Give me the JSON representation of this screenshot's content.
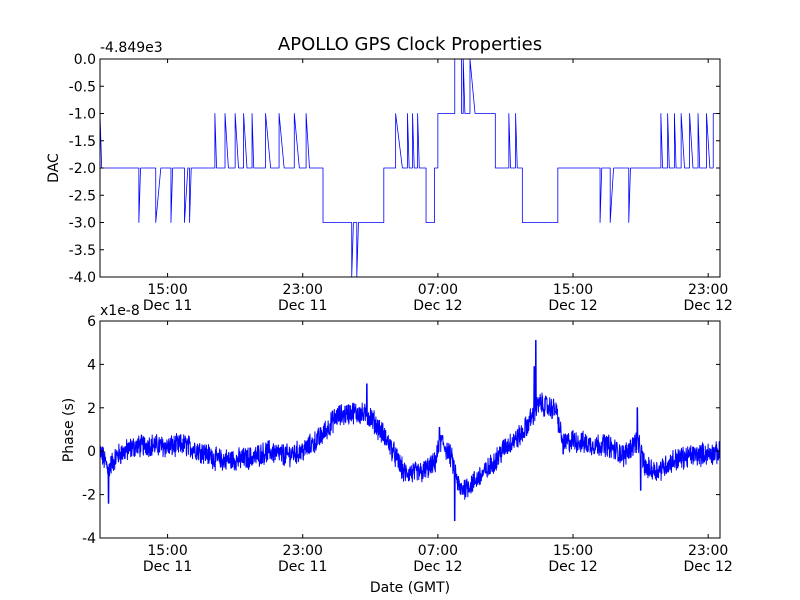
{
  "chart_data": [
    {
      "type": "line",
      "title": "APOLLO GPS Clock Properties",
      "offset_label": "-4.849e3",
      "ylabel": "DAC",
      "xlabel": "",
      "ylim": [
        -4.0,
        0.0
      ],
      "yticks": [
        "0.0",
        "-0.5",
        "-1.0",
        "-1.5",
        "-2.0",
        "-2.5",
        "-3.0",
        "-3.5",
        "-4.0"
      ],
      "ytick_values": [
        0.0,
        -0.5,
        -1.0,
        -1.5,
        -2.0,
        -2.5,
        -3.0,
        -3.5,
        -4.0
      ],
      "xlim_hours": [
        11.0,
        47.7
      ],
      "xticks": [
        {
          "hour": 15,
          "time": "15:00",
          "date": "Dec 11"
        },
        {
          "hour": 23,
          "time": "23:00",
          "date": "Dec 11"
        },
        {
          "hour": 31,
          "time": "07:00",
          "date": "Dec 12"
        },
        {
          "hour": 39,
          "time": "15:00",
          "date": "Dec 12"
        },
        {
          "hour": 47,
          "time": "23:00",
          "date": "Dec 12"
        }
      ],
      "series": [
        {
          "name": "",
          "color": "#0000ff",
          "kind": "step",
          "points": [
            [
              11.0,
              -1.0
            ],
            [
              11.1,
              -2.0
            ],
            [
              13.3,
              -2.0
            ],
            [
              13.3,
              -3.0
            ],
            [
              13.4,
              -2.0
            ],
            [
              14.3,
              -2.0
            ],
            [
              14.3,
              -3.0
            ],
            [
              14.6,
              -2.0
            ],
            [
              15.2,
              -2.0
            ],
            [
              15.2,
              -3.0
            ],
            [
              15.3,
              -2.0
            ],
            [
              16.0,
              -2.0
            ],
            [
              16.0,
              -3.0
            ],
            [
              16.2,
              -2.0
            ],
            [
              16.3,
              -2.0
            ],
            [
              16.3,
              -3.0
            ],
            [
              16.4,
              -2.0
            ],
            [
              17.8,
              -2.0
            ],
            [
              17.8,
              -1.0
            ],
            [
              17.9,
              -2.0
            ],
            [
              18.4,
              -2.0
            ],
            [
              18.4,
              -1.0
            ],
            [
              18.6,
              -2.0
            ],
            [
              19.0,
              -2.0
            ],
            [
              19.0,
              -1.0
            ],
            [
              19.2,
              -2.0
            ],
            [
              19.5,
              -2.0
            ],
            [
              19.5,
              -1.0
            ],
            [
              19.7,
              -2.0
            ],
            [
              20.0,
              -2.0
            ],
            [
              20.0,
              -1.0
            ],
            [
              20.1,
              -2.0
            ],
            [
              20.8,
              -2.0
            ],
            [
              20.8,
              -1.0
            ],
            [
              21.1,
              -2.0
            ],
            [
              21.6,
              -2.0
            ],
            [
              21.6,
              -1.0
            ],
            [
              21.9,
              -2.0
            ],
            [
              22.5,
              -2.0
            ],
            [
              22.5,
              -1.0
            ],
            [
              22.8,
              -2.0
            ],
            [
              23.2,
              -2.0
            ],
            [
              23.2,
              -1.0
            ],
            [
              23.4,
              -2.0
            ],
            [
              24.2,
              -2.0
            ],
            [
              24.2,
              -3.0
            ],
            [
              25.9,
              -3.0
            ],
            [
              25.9,
              -4.0
            ],
            [
              26.0,
              -3.0
            ],
            [
              26.2,
              -3.0
            ],
            [
              26.2,
              -4.0
            ],
            [
              26.3,
              -3.0
            ],
            [
              27.8,
              -3.0
            ],
            [
              27.8,
              -2.0
            ],
            [
              28.5,
              -2.0
            ],
            [
              28.5,
              -1.0
            ],
            [
              28.9,
              -2.0
            ],
            [
              29.2,
              -2.0
            ],
            [
              29.2,
              -1.0
            ],
            [
              29.3,
              -2.0
            ],
            [
              29.5,
              -2.0
            ],
            [
              29.5,
              -1.0
            ],
            [
              29.6,
              -2.0
            ],
            [
              29.8,
              -2.0
            ],
            [
              29.8,
              -1.0
            ],
            [
              29.9,
              -2.0
            ],
            [
              30.3,
              -2.0
            ],
            [
              30.3,
              -3.0
            ],
            [
              30.8,
              -3.0
            ],
            [
              30.8,
              -2.0
            ],
            [
              31.0,
              -2.0
            ],
            [
              31.0,
              -1.0
            ],
            [
              32.0,
              -1.0
            ],
            [
              32.0,
              0.0
            ],
            [
              32.4,
              0.0
            ],
            [
              32.4,
              -1.0
            ],
            [
              32.5,
              -1.0
            ],
            [
              32.5,
              0.0
            ],
            [
              32.6,
              -1.0
            ],
            [
              32.9,
              -1.0
            ],
            [
              32.9,
              0.0
            ],
            [
              33.2,
              -1.0
            ],
            [
              34.4,
              -1.0
            ],
            [
              34.4,
              -2.0
            ],
            [
              35.2,
              -2.0
            ],
            [
              35.2,
              -1.0
            ],
            [
              35.3,
              -2.0
            ],
            [
              35.6,
              -2.0
            ],
            [
              35.6,
              -1.0
            ],
            [
              35.7,
              -2.0
            ],
            [
              36.0,
              -2.0
            ],
            [
              36.0,
              -3.0
            ],
            [
              38.1,
              -3.0
            ],
            [
              38.1,
              -2.0
            ],
            [
              40.6,
              -2.0
            ],
            [
              40.6,
              -3.0
            ],
            [
              40.7,
              -2.0
            ],
            [
              41.2,
              -2.0
            ],
            [
              41.2,
              -3.0
            ],
            [
              41.4,
              -2.0
            ],
            [
              42.3,
              -2.0
            ],
            [
              42.3,
              -3.0
            ],
            [
              42.4,
              -2.0
            ],
            [
              44.2,
              -2.0
            ],
            [
              44.2,
              -1.0
            ],
            [
              44.3,
              -2.0
            ],
            [
              44.6,
              -2.0
            ],
            [
              44.6,
              -1.0
            ],
            [
              44.7,
              -2.0
            ],
            [
              45.0,
              -2.0
            ],
            [
              45.0,
              -1.0
            ],
            [
              45.1,
              -2.0
            ],
            [
              45.4,
              -2.0
            ],
            [
              45.4,
              -1.0
            ],
            [
              45.6,
              -2.0
            ],
            [
              45.9,
              -2.0
            ],
            [
              45.9,
              -1.0
            ],
            [
              46.1,
              -2.0
            ],
            [
              46.4,
              -2.0
            ],
            [
              46.4,
              -1.0
            ],
            [
              46.5,
              -2.0
            ],
            [
              46.9,
              -2.0
            ],
            [
              46.9,
              -1.0
            ],
            [
              47.1,
              -2.0
            ],
            [
              47.3,
              -2.0
            ],
            [
              47.3,
              -1.0
            ],
            [
              47.7,
              -1.0
            ]
          ]
        }
      ]
    },
    {
      "type": "line",
      "title": "",
      "offset_label": "x1e-8",
      "ylabel": "Phase (s)",
      "xlabel": "Date (GMT)",
      "ylim": [
        -4,
        6
      ],
      "yticks": [
        "6",
        "4",
        "2",
        "0",
        "-2",
        "-4"
      ],
      "ytick_values": [
        6,
        4,
        2,
        0,
        -2,
        -4
      ],
      "xlim_hours": [
        11.0,
        47.7
      ],
      "xticks": [
        {
          "hour": 15,
          "time": "15:00",
          "date": "Dec 11"
        },
        {
          "hour": 23,
          "time": "23:00",
          "date": "Dec 11"
        },
        {
          "hour": 31,
          "time": "07:00",
          "date": "Dec 12"
        },
        {
          "hour": 39,
          "time": "15:00",
          "date": "Dec 12"
        },
        {
          "hour": 47,
          "time": "23:00",
          "date": "Dec 12"
        }
      ],
      "series": [
        {
          "name": "",
          "color": "#0000ff",
          "kind": "noisy",
          "baseline": [
            [
              11.0,
              0.0
            ],
            [
              11.5,
              -0.8
            ],
            [
              12.0,
              -0.2
            ],
            [
              13.0,
              0.2
            ],
            [
              14.0,
              0.3
            ],
            [
              15.0,
              0.2
            ],
            [
              16.0,
              0.3
            ],
            [
              17.0,
              0.0
            ],
            [
              18.0,
              -0.4
            ],
            [
              19.0,
              -0.4
            ],
            [
              20.0,
              -0.3
            ],
            [
              21.0,
              0.0
            ],
            [
              22.0,
              -0.2
            ],
            [
              23.0,
              0.0
            ],
            [
              24.0,
              0.6
            ],
            [
              25.0,
              1.6
            ],
            [
              26.0,
              1.8
            ],
            [
              27.0,
              1.6
            ],
            [
              28.0,
              0.5
            ],
            [
              29.0,
              -1.0
            ],
            [
              30.0,
              -1.0
            ],
            [
              30.8,
              -0.6
            ],
            [
              31.2,
              0.5
            ],
            [
              31.8,
              -0.3
            ],
            [
              32.3,
              -1.8
            ],
            [
              33.0,
              -1.5
            ],
            [
              34.0,
              -0.8
            ],
            [
              35.0,
              0.2
            ],
            [
              36.0,
              0.8
            ],
            [
              36.5,
              1.5
            ],
            [
              37.0,
              2.2
            ],
            [
              38.0,
              1.9
            ],
            [
              38.4,
              0.3
            ],
            [
              39.0,
              0.5
            ],
            [
              40.0,
              0.3
            ],
            [
              41.0,
              0.3
            ],
            [
              42.0,
              -0.2
            ],
            [
              42.8,
              0.5
            ],
            [
              43.3,
              -0.8
            ],
            [
              44.0,
              -0.9
            ],
            [
              45.0,
              -0.4
            ],
            [
              46.0,
              -0.2
            ],
            [
              47.0,
              -0.1
            ],
            [
              47.7,
              -0.1
            ]
          ],
          "noise_amplitude": 0.45,
          "spikes": [
            [
              11.5,
              -2.4
            ],
            [
              26.8,
              3.1
            ],
            [
              31.1,
              1.1
            ],
            [
              32.0,
              -3.2
            ],
            [
              36.8,
              5.1
            ],
            [
              36.7,
              3.9
            ],
            [
              42.8,
              2.0
            ],
            [
              43.0,
              -1.8
            ]
          ]
        }
      ]
    }
  ]
}
